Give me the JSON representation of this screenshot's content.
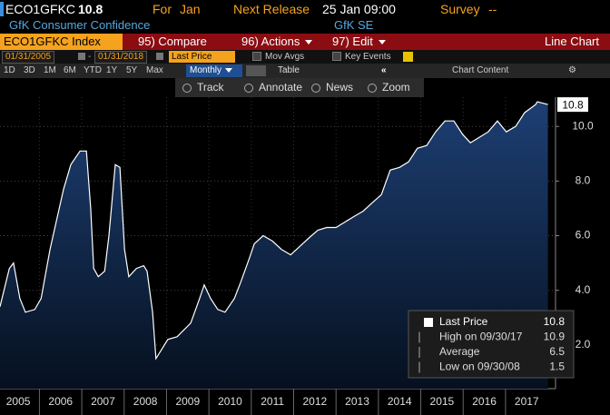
{
  "header": {
    "ticker": "ECO1GFKC",
    "last": 10.8,
    "period_label": "For",
    "period": "Jan",
    "release_label": "Next Release",
    "release": "25 Jan 09:00",
    "survey_label": "Survey",
    "survey": "--",
    "name": "GfK Consumer Confidence",
    "source": "GfK SE"
  },
  "menu": {
    "security": "ECO1GFKC Index",
    "items": [
      "95) Compare",
      "96) Actions",
      "97) Edit"
    ],
    "view": "Line Chart"
  },
  "range": {
    "start": "01/31/2005",
    "end": "01/31/2018",
    "field": "Last Price",
    "options": [
      "Mov Avgs",
      "Key Events"
    ]
  },
  "periods": [
    "1D",
    "3D",
    "1M",
    "6M",
    "YTD",
    "1Y",
    "5Y",
    "Max"
  ],
  "frequency": "Monthly",
  "table": "Table",
  "content": "Chart Content",
  "tools": [
    "Track",
    "Annotate",
    "News",
    "Zoom"
  ],
  "chart_data": {
    "type": "line",
    "series": [
      {
        "name": "Last Price",
        "color": "#ffffff",
        "x": [
          2005.07,
          2005.29,
          2005.39,
          2005.54,
          2005.67,
          2005.89,
          2006.04,
          2006.25,
          2006.57,
          2006.74,
          2006.96,
          2007.11,
          2007.21,
          2007.28,
          2007.39,
          2007.54,
          2007.64,
          2007.79,
          2007.9,
          2008.01,
          2008.11,
          2008.29,
          2008.46,
          2008.54,
          2008.67,
          2008.75,
          2009.03,
          2009.25,
          2009.57,
          2009.78,
          2009.89,
          2010.04,
          2010.21,
          2010.38,
          2010.6,
          2010.75,
          2010.96,
          2011.07,
          2011.28,
          2011.5,
          2011.71,
          2011.93,
          2012.14,
          2012.35,
          2012.57,
          2012.78,
          2013.0,
          2013.21,
          2013.42,
          2013.64,
          2013.85,
          2014.07,
          2014.28,
          2014.5,
          2014.71,
          2014.92,
          2015.14,
          2015.35,
          2015.57,
          2015.78,
          2015.99,
          2016.17,
          2016.38,
          2016.59,
          2016.81,
          2017.02,
          2017.24,
          2017.45,
          2017.71,
          2017.75,
          2018.0
        ],
        "values": [
          3.4,
          4.8,
          5.0,
          3.7,
          3.2,
          3.3,
          3.7,
          5.5,
          7.7,
          8.6,
          9.1,
          9.1,
          7.0,
          4.8,
          4.5,
          4.7,
          6.0,
          8.6,
          8.5,
          5.5,
          4.5,
          4.8,
          4.9,
          4.7,
          3.2,
          1.5,
          2.2,
          2.3,
          2.8,
          3.7,
          4.2,
          3.7,
          3.3,
          3.2,
          3.7,
          4.3,
          5.2,
          5.7,
          6.0,
          5.8,
          5.5,
          5.3,
          5.6,
          5.9,
          6.2,
          6.3,
          6.3,
          6.5,
          6.7,
          6.9,
          7.2,
          7.5,
          8.4,
          8.5,
          8.7,
          9.2,
          9.3,
          9.8,
          10.2,
          10.2,
          9.7,
          9.4,
          9.6,
          9.8,
          10.2,
          9.8,
          10.0,
          10.5,
          10.8,
          10.9,
          10.8
        ]
      }
    ],
    "xlim": [
      2005.07,
      2018.18
    ],
    "xticks": [
      {
        "value": 2005.5,
        "label": "2005"
      },
      {
        "value": 2006.5,
        "label": "2006"
      },
      {
        "value": 2007.5,
        "label": "2007"
      },
      {
        "value": 2008.5,
        "label": "2008"
      },
      {
        "value": 2009.5,
        "label": "2009"
      },
      {
        "value": 2010.5,
        "label": "2010"
      },
      {
        "value": 2011.5,
        "label": "2011"
      },
      {
        "value": 2012.5,
        "label": "2012"
      },
      {
        "value": 2013.5,
        "label": "2013"
      },
      {
        "value": 2014.5,
        "label": "2014"
      },
      {
        "value": 2015.5,
        "label": "2015"
      },
      {
        "value": 2016.5,
        "label": "2016"
      },
      {
        "value": 2017.5,
        "label": "2017"
      }
    ],
    "ylim": [
      0.4,
      11.07
    ],
    "yticks": [
      {
        "value": 2,
        "label": "2.0"
      },
      {
        "value": 4,
        "label": "4.0"
      },
      {
        "value": 6,
        "label": "6.0"
      },
      {
        "value": 8,
        "label": "8.0"
      },
      {
        "value": 10,
        "label": "10.0"
      }
    ],
    "grid": true,
    "legend_position": "lower right",
    "stats": [
      {
        "label": "Last Price",
        "value": 10.8
      },
      {
        "label": "High on 09/30/17",
        "value": 10.9
      },
      {
        "label": "Average",
        "value": 6.5
      },
      {
        "label": "Low on 09/30/08",
        "value": 1.5
      }
    ]
  }
}
